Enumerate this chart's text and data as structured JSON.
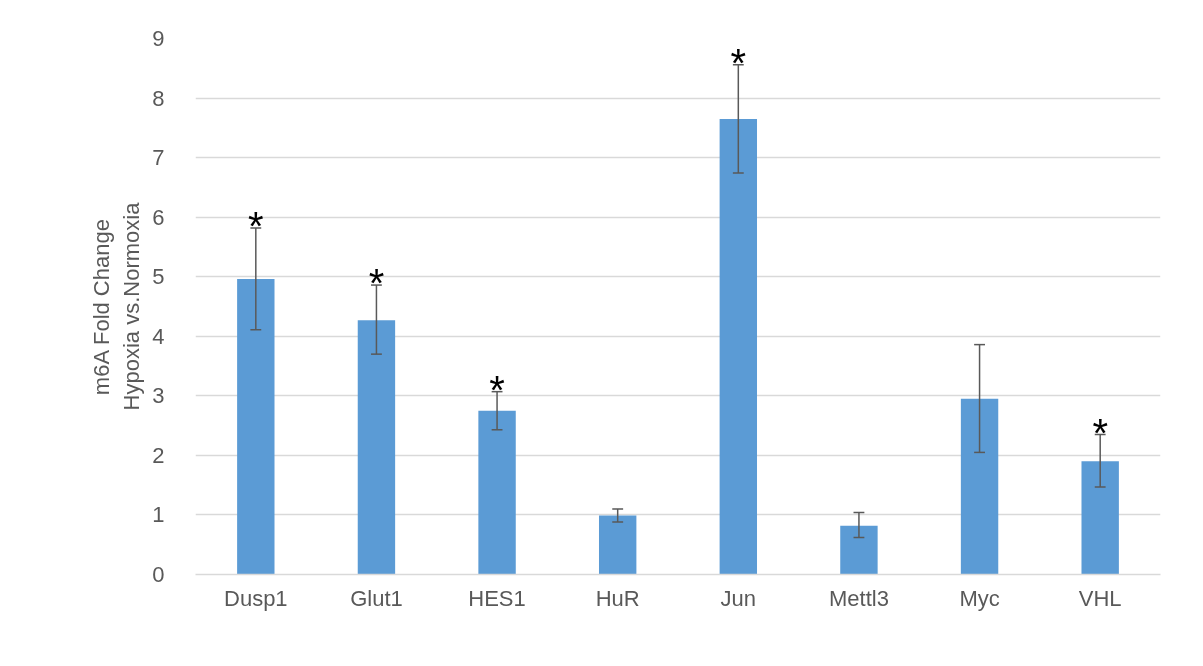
{
  "chart_data": {
    "type": "bar",
    "ylabel": "m6A Fold Change\nHypoxia vs.Normoxia",
    "categories": [
      "Dusp1",
      "Glut1",
      "HES1",
      "HuR",
      "Jun",
      "Mettl3",
      "Myc",
      "VHL"
    ],
    "values": [
      4.96,
      4.27,
      2.75,
      0.99,
      7.65,
      0.82,
      2.95,
      1.9
    ],
    "errors": [
      [
        4.11,
        5.82
      ],
      [
        3.7,
        4.86
      ],
      [
        2.43,
        3.07
      ],
      [
        0.88,
        1.1
      ],
      [
        6.74,
        8.56
      ],
      [
        0.62,
        1.04
      ],
      [
        2.05,
        3.86
      ],
      [
        1.47,
        2.35
      ]
    ],
    "color": "#5b9bd5",
    "ylim": [
      0,
      9
    ],
    "yticks": [
      0,
      1,
      2,
      3,
      4,
      5,
      6,
      7,
      8,
      9
    ],
    "grid": "y",
    "value_labels": [
      "*",
      "*",
      "*",
      null,
      "*",
      null,
      null,
      "*"
    ]
  }
}
